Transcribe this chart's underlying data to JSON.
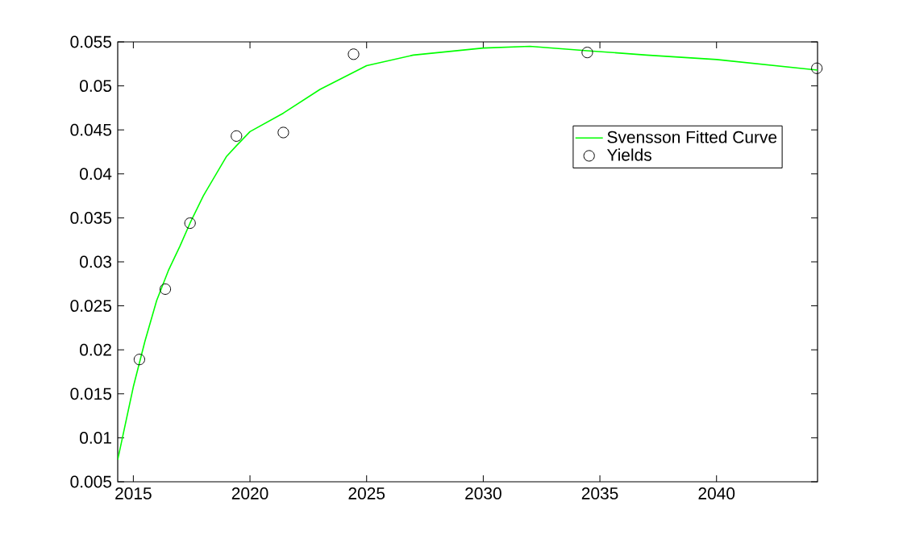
{
  "chart_data": {
    "type": "line",
    "xlim": [
      2014.33,
      2044.33
    ],
    "ylim": [
      0.005,
      0.055
    ],
    "xticks": [
      2015,
      2020,
      2025,
      2030,
      2035,
      2040
    ],
    "yticks": [
      0.005,
      0.01,
      0.015,
      0.02,
      0.025,
      0.03,
      0.035,
      0.04,
      0.045,
      0.05,
      0.055
    ],
    "legend": "top right",
    "grid": false,
    "series": [
      {
        "name": "Svensson Fitted Curve",
        "marker": "none",
        "line_style": "solid",
        "color": "#00ff00",
        "x": [
          2014.33,
          2015,
          2015.5,
          2016,
          2016.5,
          2017,
          2017.43,
          2018,
          2019,
          2019.42,
          2020,
          2021.43,
          2023,
          2025,
          2027,
          2030,
          2032,
          2034.46,
          2037,
          2040,
          2044.33
        ],
        "values": [
          0.0075,
          0.0158,
          0.021,
          0.0256,
          0.029,
          0.0318,
          0.0344,
          0.0375,
          0.042,
          0.0432,
          0.0448,
          0.0469,
          0.0496,
          0.0523,
          0.0535,
          0.0543,
          0.0545,
          0.054,
          0.0535,
          0.053,
          0.0518
        ]
      },
      {
        "name": "Yields",
        "type": "scatter",
        "marker": "circle",
        "color": "#000000",
        "x": [
          2015.26,
          2016.37,
          2017.43,
          2019.42,
          2021.43,
          2024.44,
          2034.46,
          2044.3
        ],
        "values": [
          0.0189,
          0.0269,
          0.0344,
          0.0443,
          0.0447,
          0.0536,
          0.0538,
          0.052
        ]
      }
    ]
  }
}
